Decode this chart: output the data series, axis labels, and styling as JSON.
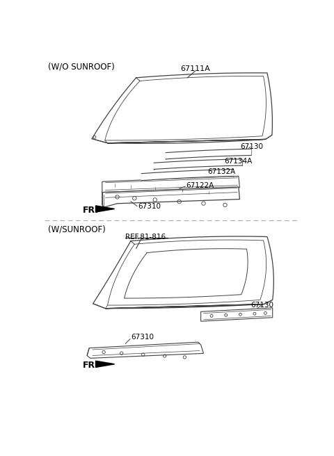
{
  "bg_color": "#ffffff",
  "line_color": "#404040",
  "text_color": "#000000",
  "fig_width": 4.8,
  "fig_height": 6.56,
  "dpi": 100,
  "section1_label": "(W/O SUNROOF)",
  "section2_label": "(W/SUNROOF)",
  "label_67111A": "67111A",
  "label_67130_1": "67130",
  "label_67134A": "67134A",
  "label_67132A": "67132A",
  "label_67122A": "67122A",
  "label_67310_1": "67310",
  "label_ref": "REF.81-816",
  "label_67130_2": "67130",
  "label_67310_2": "67310",
  "label_FR": "FR."
}
